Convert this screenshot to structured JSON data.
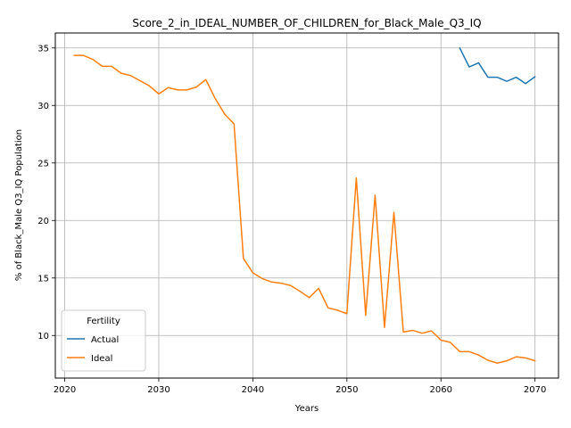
{
  "chart_data": {
    "type": "line",
    "title": "Score_2_in_IDEAL_NUMBER_OF_CHILDREN_for_Black_Male_Q3_IQ",
    "xlabel": "Years",
    "ylabel": "% of Black_Male Q3_IQ Population",
    "xlim": [
      2019,
      2072.5
    ],
    "ylim": [
      6.3,
      36.3
    ],
    "x_ticks": [
      2020,
      2030,
      2040,
      2050,
      2060,
      2070
    ],
    "y_ticks": [
      10,
      15,
      20,
      25,
      30,
      35
    ],
    "grid": true,
    "legend": {
      "title": "Fertility",
      "placement": "lower-left"
    },
    "series": [
      {
        "name": "Actual",
        "color": "#1f77b4",
        "x": [
          2062,
          2063,
          2064,
          2065,
          2066,
          2067,
          2068,
          2069,
          2070
        ],
        "y": [
          35.0,
          33.35,
          33.7,
          32.45,
          32.45,
          32.1,
          32.45,
          31.9,
          32.5
        ]
      },
      {
        "name": "Ideal",
        "color": "#ff7f0e",
        "x": [
          2021,
          2022,
          2023,
          2024,
          2025,
          2026,
          2027,
          2028,
          2029,
          2030,
          2031,
          2032,
          2033,
          2034,
          2035,
          2036,
          2037,
          2038,
          2039,
          2040,
          2041,
          2042,
          2043,
          2044,
          2045,
          2046,
          2047,
          2048,
          2049,
          2050,
          2051,
          2052,
          2053,
          2054,
          2055,
          2056,
          2057,
          2058,
          2059,
          2060,
          2061,
          2062,
          2063,
          2064,
          2065,
          2066,
          2067,
          2068,
          2069,
          2070
        ],
        "y": [
          34.35,
          34.35,
          34.0,
          33.4,
          33.4,
          32.8,
          32.6,
          32.15,
          31.7,
          31.0,
          31.55,
          31.35,
          31.35,
          31.6,
          32.25,
          30.6,
          29.25,
          28.4,
          16.7,
          15.45,
          14.95,
          14.65,
          14.55,
          14.35,
          13.85,
          13.3,
          14.1,
          12.4,
          12.2,
          11.9,
          23.7,
          11.75,
          22.2,
          10.7,
          20.7,
          10.3,
          10.45,
          10.2,
          10.4,
          9.6,
          9.4,
          8.6,
          8.6,
          8.3,
          7.85,
          7.6,
          7.8,
          8.15,
          8.05,
          7.8
        ]
      }
    ]
  }
}
